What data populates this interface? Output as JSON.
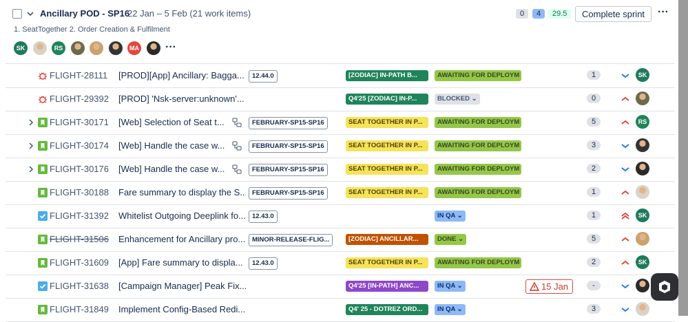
{
  "header": {
    "title": "Ancillary POD - SP16",
    "dates": "22 Jan – 5 Feb (21 work items)",
    "counts": [
      "0",
      "4",
      "29.5"
    ],
    "button": "Complete sprint",
    "subtitle": "1. SeatTogether 2. Order Creation & Fulfilment",
    "avatars": [
      "SK",
      "RS",
      "MA"
    ]
  },
  "rows": [
    {
      "key": "FLIGHT-28111",
      "summary": "[PROD][App] Ancillary: Bagga...",
      "version": "12.44.0",
      "epic": "[ZODIAC] IN-PATH B...",
      "status": "AWAITING FOR DEPLOYM",
      "estimate": "1",
      "assignee": "SK"
    },
    {
      "key": "FLIGHT-29392",
      "summary": "[PROD] 'Nsk-server:unknown'...",
      "epic": "Q4'25 [ZODIAC] IN-P...",
      "status": "BLOCKED",
      "estimate": "0"
    },
    {
      "key": "FLIGHT-30171",
      "summary": "[Web] Selection of Seat t...",
      "version": "FEBRUARY-SP15-SP16",
      "epic": "SEAT TOGETHER IN P...",
      "status": "AWAITING FOR DEPLOYM",
      "estimate": "5",
      "assignee": "RS"
    },
    {
      "key": "FLIGHT-30174",
      "summary": "[Web] Handle the case w...",
      "version": "FEBRUARY-SP15-SP16",
      "epic": "SEAT TOGETHER IN P...",
      "status": "AWAITING FOR DEPLOYM",
      "estimate": "3"
    },
    {
      "key": "FLIGHT-30176",
      "summary": "[Web] Handle the case w...",
      "version": "FEBRUARY-SP15-SP16",
      "epic": "SEAT TOGETHER IN P...",
      "status": "AWAITING FOR DEPLOYM",
      "estimate": "2"
    },
    {
      "key": "FLIGHT-30188",
      "summary": "Fare summary to display the S...",
      "version": "FEBRUARY-SP15-SP16",
      "epic": "SEAT TOGETHER IN P...",
      "status": "AWAITING FOR DEPLOYM",
      "estimate": "1"
    },
    {
      "key": "FLIGHT-31392",
      "summary": "Whitelist Outgoing Deeplink fo...",
      "version": "12.43.0",
      "status": "IN QA",
      "estimate": "1",
      "assignee": "SK"
    },
    {
      "key": "FLIGHT-31506",
      "summary": "Enhancement for Ancillary pro...",
      "version": "MINOR-RELEASE-FLIG...",
      "epic": "[ZODIAC] ANCILLAR...",
      "status": "DONE",
      "estimate": "5"
    },
    {
      "key": "FLIGHT-31609",
      "summary": "[App] Fare summary to displa...",
      "version": "12.43.0",
      "epic": "SEAT TOGETHER IN P...",
      "status": "AWAITING FOR DEPLOYM",
      "estimate": "2",
      "assignee": "SK"
    },
    {
      "key": "FLIGHT-31638",
      "summary": "[Campaign Manager] Peak Fix...",
      "epic": "Q4'25 [IN-PATH] ANC...",
      "status": "IN QA",
      "due": "15 Jan",
      "estimate": "-"
    },
    {
      "key": "FLIGHT-31849",
      "summary": "Implement Config-Based Redi...",
      "epic": "Q4' 25 - DOTREZ ORD...",
      "status": "IN QA",
      "estimate": "3"
    }
  ]
}
